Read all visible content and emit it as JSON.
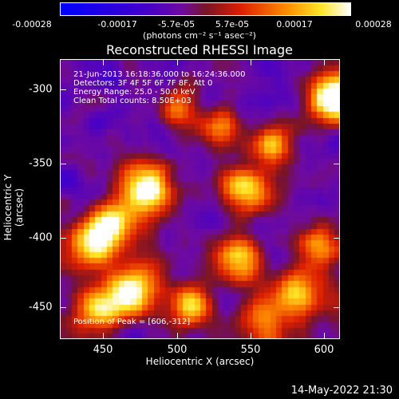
{
  "chart_data": {
    "type": "heatmap",
    "title": "Reconstructed RHESSI Image",
    "xlabel": "Heliocentric X (arcsec)",
    "ylabel": "Heliocentric Y (arcsec)",
    "xlim": [
      423,
      612
    ],
    "ylim": [
      -470,
      -282
    ],
    "x_ticks": [
      450,
      500,
      550,
      600
    ],
    "y_ticks": [
      -300,
      -350,
      -400,
      -450
    ],
    "colorbar": {
      "range": [
        -0.00028,
        0.00028
      ],
      "ticks": [
        "-0.00028",
        "-0.00017",
        "-5.7e-05",
        "5.7e-05",
        "0.00017",
        "0.00028"
      ],
      "units": "(photons cm⁻² s⁻¹ asec⁻²)",
      "colors": [
        "#0000ff",
        "#5a00b0",
        "#7a1010",
        "#ff2000",
        "#ff9900",
        "#ffffff"
      ]
    },
    "annotations": [
      "21-Jun-2013 16:18:36.000 to 16:24:36.000",
      "Detectors: 3F 4F 5F 6F 7F 8F, Att 0",
      "Energy Range: 25.0 - 50.0 keV",
      "Clean    Total counts: 8.50E+03",
      "Position of Peak = [606,-312]"
    ],
    "peak": [
      606,
      -312
    ]
  },
  "footer": "14-May-2022 21:30"
}
